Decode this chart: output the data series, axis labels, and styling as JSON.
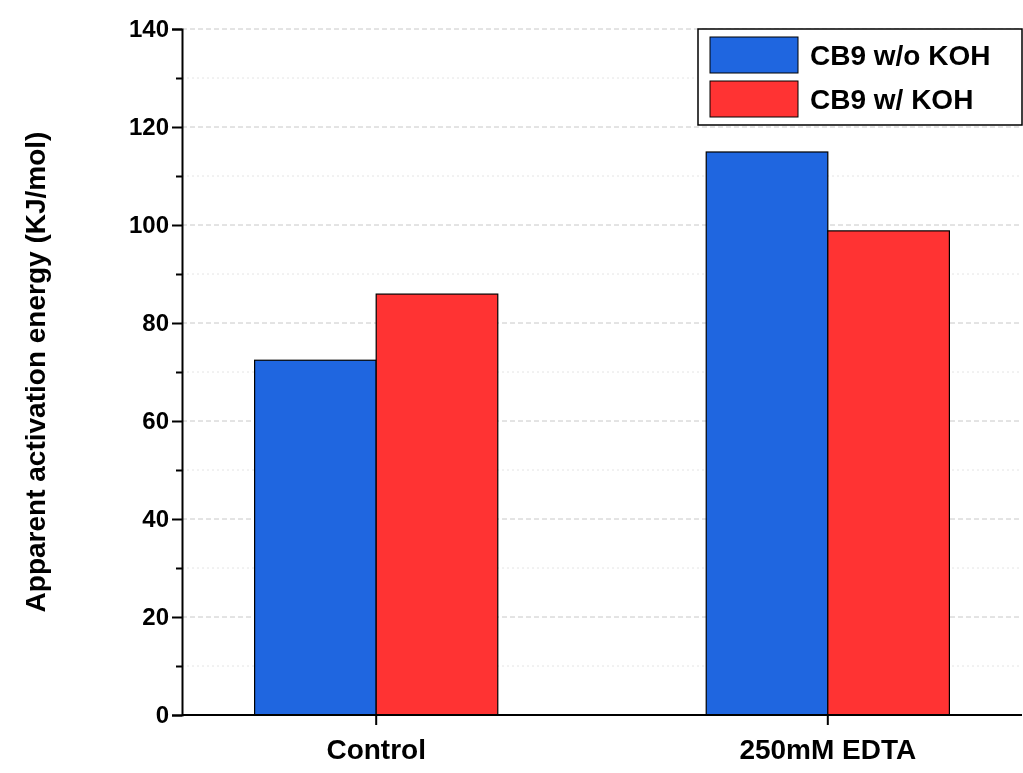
{
  "chart_data": {
    "type": "bar",
    "ylabel": "Apparent activation energy (KJ/mol)",
    "categories": [
      "Control",
      "250mM EDTA"
    ],
    "series": [
      {
        "name": "CB9 w/o KOH",
        "color": "#1f66e0",
        "values": [
          72.4,
          114.9
        ]
      },
      {
        "name": "CB9 w/ KOH",
        "color": "#ff3333",
        "values": [
          85.9,
          98.8
        ]
      }
    ],
    "ylim": [
      0,
      140
    ],
    "yticks": [
      0,
      {
        "value": 10,
        "label": null
      },
      20,
      {
        "value": 30,
        "label": null
      },
      40,
      {
        "value": 50,
        "label": null
      },
      60,
      {
        "value": 70,
        "label": null
      },
      80,
      {
        "value": 90,
        "label": null
      },
      100,
      {
        "value": 110,
        "label": null
      },
      120,
      {
        "value": 130,
        "label": null
      },
      140
    ],
    "grid": "y",
    "legend": "top right"
  }
}
